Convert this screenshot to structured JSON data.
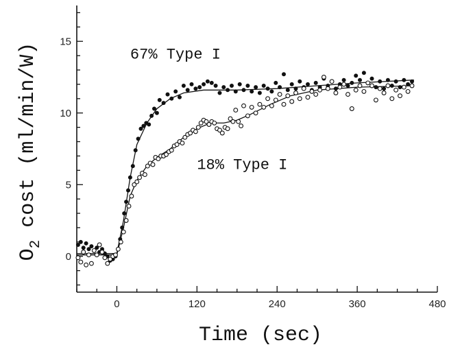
{
  "chart_data": {
    "type": "scatter",
    "xlabel": "Time (sec)",
    "ylabel_main": "O",
    "ylabel_sub": "2",
    "ylabel_rest": " cost (ml/min/W)",
    "xlim": [
      -60,
      480
    ],
    "ylim": [
      -2.5,
      17.5
    ],
    "xticks": [
      0,
      120,
      240,
      360,
      480
    ],
    "yticks": [
      0,
      5,
      10,
      15
    ],
    "grid": false,
    "annotations": [
      {
        "text": "67% Type I",
        "x": 20,
        "y": 13.8
      },
      {
        "text": "18% Type I",
        "x": 120,
        "y": 6.1
      }
    ],
    "series": [
      {
        "marker": "filled-circle",
        "fit": [
          [
            -60,
            0.2
          ],
          [
            -10,
            0.2
          ],
          [
            0,
            0.2
          ],
          [
            10,
            2.5
          ],
          [
            20,
            5.5
          ],
          [
            30,
            7.8
          ],
          [
            45,
            9.3
          ],
          [
            60,
            10.3
          ],
          [
            80,
            11.0
          ],
          [
            100,
            11.4
          ],
          [
            130,
            11.6
          ],
          [
            180,
            11.6
          ],
          [
            240,
            11.7
          ],
          [
            300,
            11.9
          ],
          [
            360,
            12.1
          ],
          [
            445,
            12.3
          ]
        ],
        "points": [
          [
            -58,
            0.8
          ],
          [
            -54,
            1.0
          ],
          [
            -50,
            0.6
          ],
          [
            -46,
            0.9
          ],
          [
            -42,
            0.5
          ],
          [
            -38,
            0.7
          ],
          [
            -34,
            0.4
          ],
          [
            -30,
            0.6
          ],
          [
            -26,
            0.3
          ],
          [
            -22,
            0.5
          ],
          [
            -18,
            0.2
          ],
          [
            -14,
            0.0
          ],
          [
            -10,
            -0.3
          ],
          [
            -6,
            -0.2
          ],
          [
            -2,
            0.0
          ],
          [
            2,
            0.5
          ],
          [
            5,
            1.2
          ],
          [
            8,
            2.0
          ],
          [
            11,
            3.0
          ],
          [
            14,
            3.8
          ],
          [
            17,
            4.6
          ],
          [
            20,
            5.5
          ],
          [
            24,
            6.3
          ],
          [
            28,
            7.4
          ],
          [
            32,
            8.2
          ],
          [
            36,
            8.9
          ],
          [
            40,
            9.1
          ],
          [
            44,
            9.3
          ],
          [
            48,
            9.2
          ],
          [
            52,
            9.8
          ],
          [
            56,
            10.3
          ],
          [
            60,
            10.0
          ],
          [
            64,
            10.9
          ],
          [
            70,
            10.7
          ],
          [
            76,
            11.3
          ],
          [
            82,
            11.0
          ],
          [
            88,
            11.5
          ],
          [
            94,
            11.1
          ],
          [
            100,
            11.9
          ],
          [
            106,
            11.6
          ],
          [
            112,
            12.0
          ],
          [
            118,
            11.7
          ],
          [
            124,
            11.8
          ],
          [
            130,
            12.0
          ],
          [
            136,
            12.2
          ],
          [
            142,
            12.1
          ],
          [
            148,
            11.9
          ],
          [
            154,
            11.4
          ],
          [
            160,
            11.8
          ],
          [
            166,
            11.6
          ],
          [
            172,
            11.9
          ],
          [
            178,
            11.5
          ],
          [
            184,
            12.0
          ],
          [
            190,
            11.6
          ],
          [
            196,
            11.9
          ],
          [
            202,
            11.5
          ],
          [
            208,
            11.8
          ],
          [
            214,
            11.4
          ],
          [
            220,
            11.9
          ],
          [
            226,
            11.7
          ],
          [
            232,
            11.5
          ],
          [
            238,
            12.1
          ],
          [
            244,
            11.8
          ],
          [
            250,
            12.7
          ],
          [
            256,
            11.6
          ],
          [
            262,
            12.0
          ],
          [
            268,
            11.7
          ],
          [
            274,
            12.2
          ],
          [
            280,
            11.8
          ],
          [
            286,
            12.0
          ],
          [
            292,
            11.6
          ],
          [
            298,
            12.1
          ],
          [
            304,
            11.8
          ],
          [
            310,
            12.4
          ],
          [
            316,
            11.9
          ],
          [
            322,
            12.2
          ],
          [
            328,
            11.7
          ],
          [
            334,
            12.0
          ],
          [
            340,
            12.3
          ],
          [
            346,
            11.9
          ],
          [
            352,
            12.1
          ],
          [
            358,
            12.6
          ],
          [
            364,
            12.3
          ],
          [
            370,
            12.8
          ],
          [
            376,
            12.1
          ],
          [
            382,
            12.4
          ],
          [
            388,
            11.8
          ],
          [
            394,
            12.2
          ],
          [
            400,
            11.7
          ],
          [
            406,
            12.3
          ],
          [
            412,
            11.9
          ],
          [
            418,
            12.2
          ],
          [
            424,
            11.8
          ],
          [
            430,
            12.3
          ],
          [
            436,
            12.0
          ],
          [
            442,
            12.2
          ]
        ]
      },
      {
        "marker": "open-circle",
        "fit": [
          [
            -60,
            0.1
          ],
          [
            -10,
            0.1
          ],
          [
            0,
            0.1
          ],
          [
            10,
            2.0
          ],
          [
            20,
            4.2
          ],
          [
            30,
            5.3
          ],
          [
            45,
            6.3
          ],
          [
            60,
            6.9
          ],
          [
            80,
            7.5
          ],
          [
            100,
            8.3
          ],
          [
            120,
            8.9
          ],
          [
            140,
            9.3
          ],
          [
            160,
            9.3
          ],
          [
            180,
            9.5
          ],
          [
            200,
            9.9
          ],
          [
            230,
            10.6
          ],
          [
            260,
            11.2
          ],
          [
            300,
            11.6
          ],
          [
            360,
            11.8
          ],
          [
            445,
            11.9
          ]
        ],
        "points": [
          [
            -58,
            -0.1
          ],
          [
            -54,
            -0.4
          ],
          [
            -50,
            0.3
          ],
          [
            -46,
            -0.6
          ],
          [
            -42,
            0.1
          ],
          [
            -38,
            -0.5
          ],
          [
            -34,
            0.4
          ],
          [
            -30,
            0.1
          ],
          [
            -26,
            0.8
          ],
          [
            -22,
            0.3
          ],
          [
            -18,
            -0.1
          ],
          [
            -14,
            -0.5
          ],
          [
            -10,
            -0.2
          ],
          [
            -6,
            0.0
          ],
          [
            -2,
            0.1
          ],
          [
            2,
            0.5
          ],
          [
            6,
            1.0
          ],
          [
            10,
            1.7
          ],
          [
            14,
            2.5
          ],
          [
            18,
            3.5
          ],
          [
            22,
            4.2
          ],
          [
            26,
            5.0
          ],
          [
            30,
            5.2
          ],
          [
            34,
            5.5
          ],
          [
            38,
            5.8
          ],
          [
            42,
            5.7
          ],
          [
            46,
            6.3
          ],
          [
            50,
            6.5
          ],
          [
            54,
            6.4
          ],
          [
            58,
            6.9
          ],
          [
            62,
            6.8
          ],
          [
            66,
            7.0
          ],
          [
            70,
            7.0
          ],
          [
            74,
            7.1
          ],
          [
            78,
            7.3
          ],
          [
            82,
            7.4
          ],
          [
            86,
            7.7
          ],
          [
            90,
            7.8
          ],
          [
            94,
            8.0
          ],
          [
            98,
            7.9
          ],
          [
            102,
            8.3
          ],
          [
            106,
            8.5
          ],
          [
            110,
            8.6
          ],
          [
            114,
            8.8
          ],
          [
            118,
            8.7
          ],
          [
            122,
            9.0
          ],
          [
            126,
            9.3
          ],
          [
            130,
            9.5
          ],
          [
            134,
            9.4
          ],
          [
            138,
            9.2
          ],
          [
            142,
            9.4
          ],
          [
            146,
            9.3
          ],
          [
            150,
            8.9
          ],
          [
            154,
            8.8
          ],
          [
            158,
            8.6
          ],
          [
            162,
            9.0
          ],
          [
            166,
            8.9
          ],
          [
            170,
            9.6
          ],
          [
            174,
            9.4
          ],
          [
            178,
            10.2
          ],
          [
            182,
            9.4
          ],
          [
            186,
            9.1
          ],
          [
            190,
            10.5
          ],
          [
            196,
            9.8
          ],
          [
            202,
            10.4
          ],
          [
            208,
            10.0
          ],
          [
            214,
            10.6
          ],
          [
            220,
            10.4
          ],
          [
            226,
            11.0
          ],
          [
            232,
            10.5
          ],
          [
            238,
            10.9
          ],
          [
            244,
            11.3
          ],
          [
            250,
            10.6
          ],
          [
            256,
            11.2
          ],
          [
            262,
            10.8
          ],
          [
            268,
            11.4
          ],
          [
            274,
            11.0
          ],
          [
            280,
            11.7
          ],
          [
            286,
            11.1
          ],
          [
            292,
            11.5
          ],
          [
            298,
            11.3
          ],
          [
            304,
            11.6
          ],
          [
            310,
            12.5
          ],
          [
            316,
            11.7
          ],
          [
            322,
            12.2
          ],
          [
            328,
            11.4
          ],
          [
            334,
            11.8
          ],
          [
            340,
            12.0
          ],
          [
            346,
            11.3
          ],
          [
            352,
            10.3
          ],
          [
            358,
            11.6
          ],
          [
            364,
            11.9
          ],
          [
            370,
            11.5
          ],
          [
            376,
            12.1
          ],
          [
            382,
            11.9
          ],
          [
            388,
            10.9
          ],
          [
            394,
            11.7
          ],
          [
            400,
            11.4
          ],
          [
            406,
            11.9
          ],
          [
            412,
            11.0
          ],
          [
            418,
            11.6
          ],
          [
            424,
            11.2
          ],
          [
            430,
            11.8
          ],
          [
            436,
            11.5
          ],
          [
            442,
            11.9
          ]
        ]
      }
    ]
  }
}
